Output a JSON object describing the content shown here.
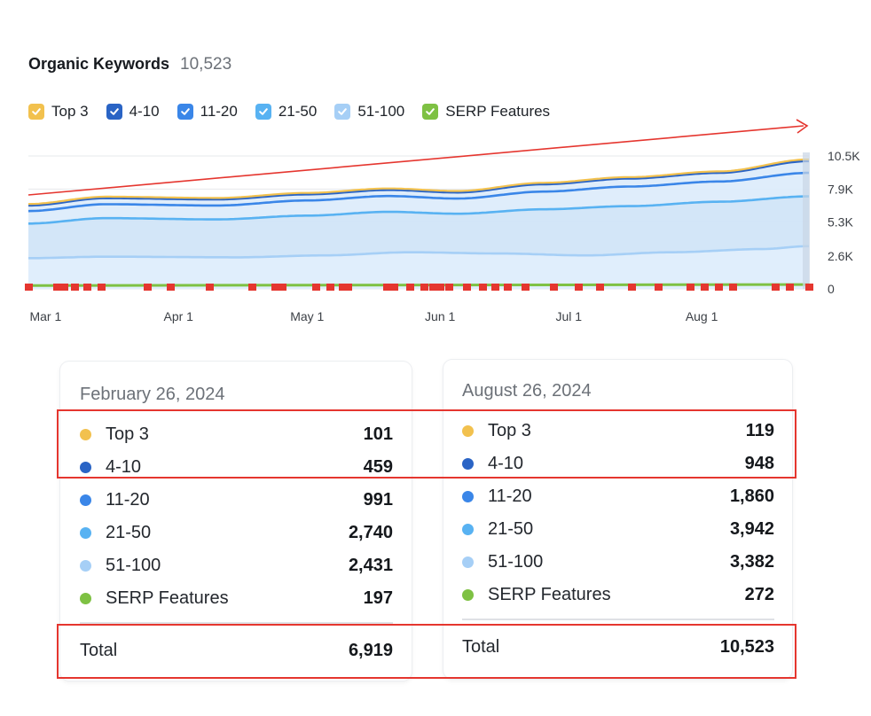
{
  "header": {
    "title": "Organic Keywords",
    "count": "10,523"
  },
  "legend": [
    {
      "label": "Top 3",
      "color": "#f2c14e"
    },
    {
      "label": "4-10",
      "color": "#2a64c5"
    },
    {
      "label": "11-20",
      "color": "#3a86e8"
    },
    {
      "label": "21-50",
      "color": "#58b2f2"
    },
    {
      "label": "51-100",
      "color": "#a6cff6"
    },
    {
      "label": "SERP Features",
      "color": "#7ec143"
    }
  ],
  "chart_data": {
    "type": "area",
    "stacked": true,
    "x_tick_labels": [
      "Mar 1",
      "Apr 1",
      "May 1",
      "Jun 1",
      "Jul 1",
      "Aug 1"
    ],
    "y_tick_labels": [
      "10.5K",
      "7.9K",
      "5.3K",
      "2.6K",
      "0"
    ],
    "ylim": [
      0,
      10523
    ],
    "x_start": "2024-02-26",
    "x_end": "2024-08-26",
    "grid": true,
    "series": [
      {
        "name": "51-100",
        "color": "#a6cff6",
        "points": [
          [
            "2024-02-26",
            2431
          ],
          [
            "2024-03-15",
            2550
          ],
          [
            "2024-04-15",
            2500
          ],
          [
            "2024-05-05",
            2650
          ],
          [
            "2024-05-25",
            2900
          ],
          [
            "2024-06-15",
            2800
          ],
          [
            "2024-07-05",
            2650
          ],
          [
            "2024-07-25",
            2900
          ],
          [
            "2024-08-15",
            3150
          ],
          [
            "2024-08-26",
            3382
          ]
        ]
      },
      {
        "name": "21-50",
        "color": "#58b2f2",
        "points": [
          [
            "2024-02-26",
            5171
          ],
          [
            "2024-03-15",
            5600
          ],
          [
            "2024-04-10",
            5500
          ],
          [
            "2024-05-01",
            5800
          ],
          [
            "2024-05-20",
            6100
          ],
          [
            "2024-06-05",
            5950
          ],
          [
            "2024-06-25",
            6300
          ],
          [
            "2024-07-15",
            6550
          ],
          [
            "2024-08-05",
            6900
          ],
          [
            "2024-08-26",
            7324
          ]
        ]
      },
      {
        "name": "11-20",
        "color": "#3a86e8",
        "points": [
          [
            "2024-02-26",
            6162
          ],
          [
            "2024-03-15",
            6700
          ],
          [
            "2024-04-10",
            6600
          ],
          [
            "2024-05-01",
            7000
          ],
          [
            "2024-05-20",
            7350
          ],
          [
            "2024-06-05",
            7150
          ],
          [
            "2024-06-25",
            7700
          ],
          [
            "2024-07-15",
            8100
          ],
          [
            "2024-08-05",
            8500
          ],
          [
            "2024-08-26",
            9184
          ]
        ]
      },
      {
        "name": "4-10",
        "color": "#2a64c5",
        "points": [
          [
            "2024-02-26",
            6621
          ],
          [
            "2024-03-15",
            7200
          ],
          [
            "2024-04-10",
            7100
          ],
          [
            "2024-05-01",
            7500
          ],
          [
            "2024-05-20",
            7850
          ],
          [
            "2024-06-05",
            7650
          ],
          [
            "2024-06-25",
            8300
          ],
          [
            "2024-07-15",
            8750
          ],
          [
            "2024-08-05",
            9200
          ],
          [
            "2024-08-26",
            10132
          ]
        ]
      },
      {
        "name": "Top 3",
        "color": "#f2c14e",
        "points": [
          [
            "2024-02-26",
            6722
          ],
          [
            "2024-03-15",
            7300
          ],
          [
            "2024-04-10",
            7200
          ],
          [
            "2024-05-01",
            7600
          ],
          [
            "2024-05-20",
            7950
          ],
          [
            "2024-06-05",
            7750
          ],
          [
            "2024-06-25",
            8400
          ],
          [
            "2024-07-15",
            8850
          ],
          [
            "2024-08-05",
            9300
          ],
          [
            "2024-08-26",
            10251
          ]
        ]
      },
      {
        "name": "SERP Features",
        "color": "#7ec143",
        "points": [
          [
            "2024-02-26",
            197
          ],
          [
            "2024-08-26",
            272
          ]
        ]
      }
    ]
  },
  "summary": {
    "left": {
      "date": "February 26, 2024",
      "rows": [
        {
          "label": "Top 3",
          "value": "101",
          "color": "#f2c14e"
        },
        {
          "label": "4-10",
          "value": "459",
          "color": "#2a64c5"
        },
        {
          "label": "11-20",
          "value": "991",
          "color": "#3a86e8"
        },
        {
          "label": "21-50",
          "value": "2,740",
          "color": "#58b2f2"
        },
        {
          "label": "51-100",
          "value": "2,431",
          "color": "#a6cff6"
        },
        {
          "label": "SERP Features",
          "value": "197",
          "color": "#7ec143"
        }
      ],
      "total_label": "Total",
      "total_value": "6,919"
    },
    "right": {
      "date": "August 26, 2024",
      "rows": [
        {
          "label": "Top 3",
          "value": "119",
          "color": "#f2c14e"
        },
        {
          "label": "4-10",
          "value": "948",
          "color": "#2a64c5"
        },
        {
          "label": "11-20",
          "value": "1,860",
          "color": "#3a86e8"
        },
        {
          "label": "21-50",
          "value": "3,942",
          "color": "#58b2f2"
        },
        {
          "label": "51-100",
          "value": "3,382",
          "color": "#a6cff6"
        },
        {
          "label": "SERP Features",
          "value": "272",
          "color": "#7ec143"
        }
      ],
      "total_label": "Total",
      "total_value": "10,523"
    }
  },
  "colors": {
    "highlight": "#e5362f",
    "trend_arrow": "#e5362f",
    "flag": "#e5362f"
  }
}
